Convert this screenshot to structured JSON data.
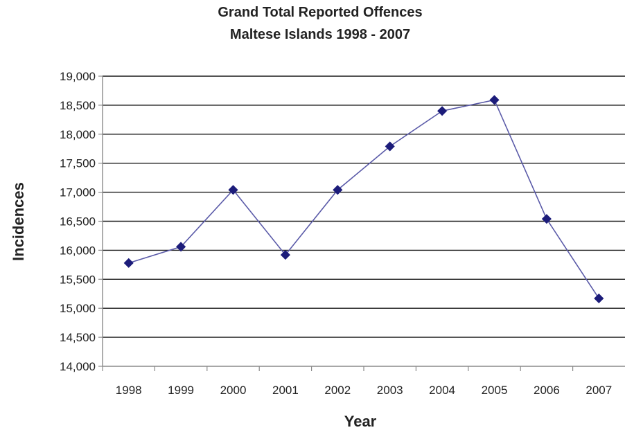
{
  "chart_data": {
    "type": "line",
    "title": "Grand Total Reported Offences",
    "subtitle": "Maltese Islands 1998 - 2007",
    "xlabel": "Year",
    "ylabel": "Incidences",
    "categories": [
      "1998",
      "1999",
      "2000",
      "2001",
      "2002",
      "2003",
      "2004",
      "2005",
      "2006",
      "2007"
    ],
    "series": [
      {
        "values": [
          15780,
          16060,
          17040,
          15920,
          17040,
          17790,
          18400,
          18590,
          16540,
          15170
        ],
        "color": "#1c1c7a"
      }
    ],
    "ylim": [
      14000,
      19000
    ],
    "yticks": [
      14000,
      14500,
      15000,
      15500,
      16000,
      16500,
      17000,
      17500,
      18000,
      18500,
      19000
    ],
    "ytick_labels": [
      "14,000",
      "14,500",
      "15,000",
      "15,500",
      "16,000",
      "16,500",
      "17,000",
      "17,500",
      "18,000",
      "18,500",
      "19,000"
    ],
    "grid": true,
    "legend": "none",
    "marker": "diamond",
    "gridline_color": "#1a1a1a",
    "axis_color": "#8a8a8a"
  }
}
